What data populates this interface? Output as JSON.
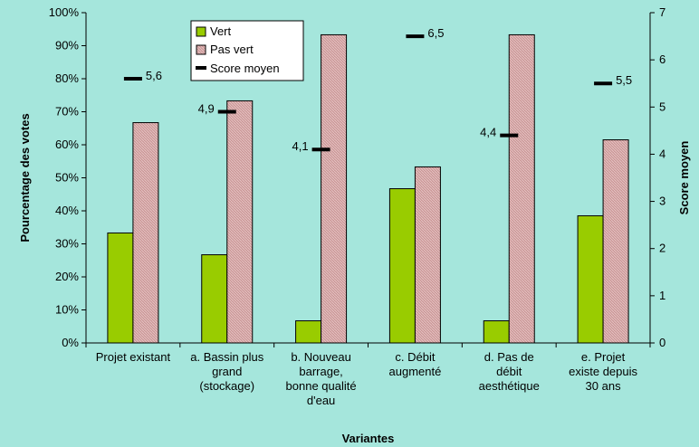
{
  "chart_data": {
    "type": "bar",
    "categories": [
      [
        "Projet existant"
      ],
      [
        "a. Bassin plus",
        "grand",
        "(stockage)"
      ],
      [
        "b. Nouveau",
        "barrage,",
        "bonne qualité",
        "d'eau"
      ],
      [
        "c. Débit",
        "augmenté"
      ],
      [
        "d. Pas de",
        "débit",
        "aesthétique"
      ],
      [
        "e. Projet",
        "existe depuis",
        "30 ans"
      ]
    ],
    "series": [
      {
        "name": "Vert",
        "values": [
          0.333,
          0.267,
          0.067,
          0.467,
          0.067,
          0.385
        ],
        "color": "#99CC00",
        "axis": "left"
      },
      {
        "name": "Pas vert",
        "values": [
          0.667,
          0.733,
          0.933,
          0.533,
          0.933,
          0.615
        ],
        "color": "#CC9999",
        "axis": "left"
      }
    ],
    "score_series": {
      "name": "Score moyen",
      "values": [
        5.6,
        4.9,
        4.1,
        6.5,
        4.4,
        5.5
      ],
      "labels": [
        "5,6",
        "4,9",
        "4,1",
        "6,5",
        "4,4",
        "5,5"
      ],
      "axis": "right"
    },
    "xlabel": "Variantes",
    "ylabel": "Pourcentage des votes",
    "y2label": "Score moyen",
    "ylim": [
      0,
      1
    ],
    "y2lim": [
      0,
      7
    ],
    "yticks": [
      "0%",
      "10%",
      "20%",
      "30%",
      "40%",
      "50%",
      "60%",
      "70%",
      "80%",
      "90%",
      "100%"
    ],
    "y2ticks": [
      "0",
      "1",
      "2",
      "3",
      "4",
      "5",
      "6",
      "7"
    ],
    "legend": {
      "placement": "top-center",
      "entries": [
        "Vert",
        "Pas vert",
        "Score moyen"
      ]
    },
    "grid": false,
    "background": "#A5E6DC"
  }
}
